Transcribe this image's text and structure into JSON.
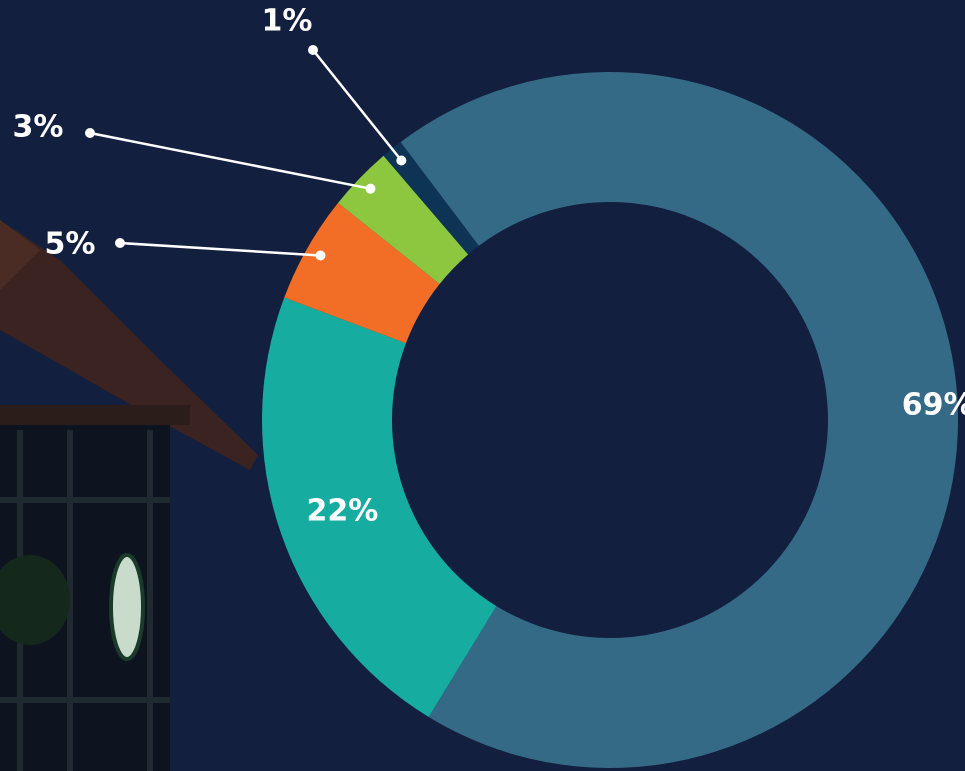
{
  "chart_data": {
    "type": "donut",
    "values": [
      69,
      22,
      5,
      3,
      1
    ],
    "value_labels": [
      "69%",
      "22%",
      "5%",
      "3%",
      "1%"
    ],
    "colors": [
      "#356a87",
      "#17aca0",
      "#f26e27",
      "#8dc63f",
      "#0d3355"
    ]
  }
}
